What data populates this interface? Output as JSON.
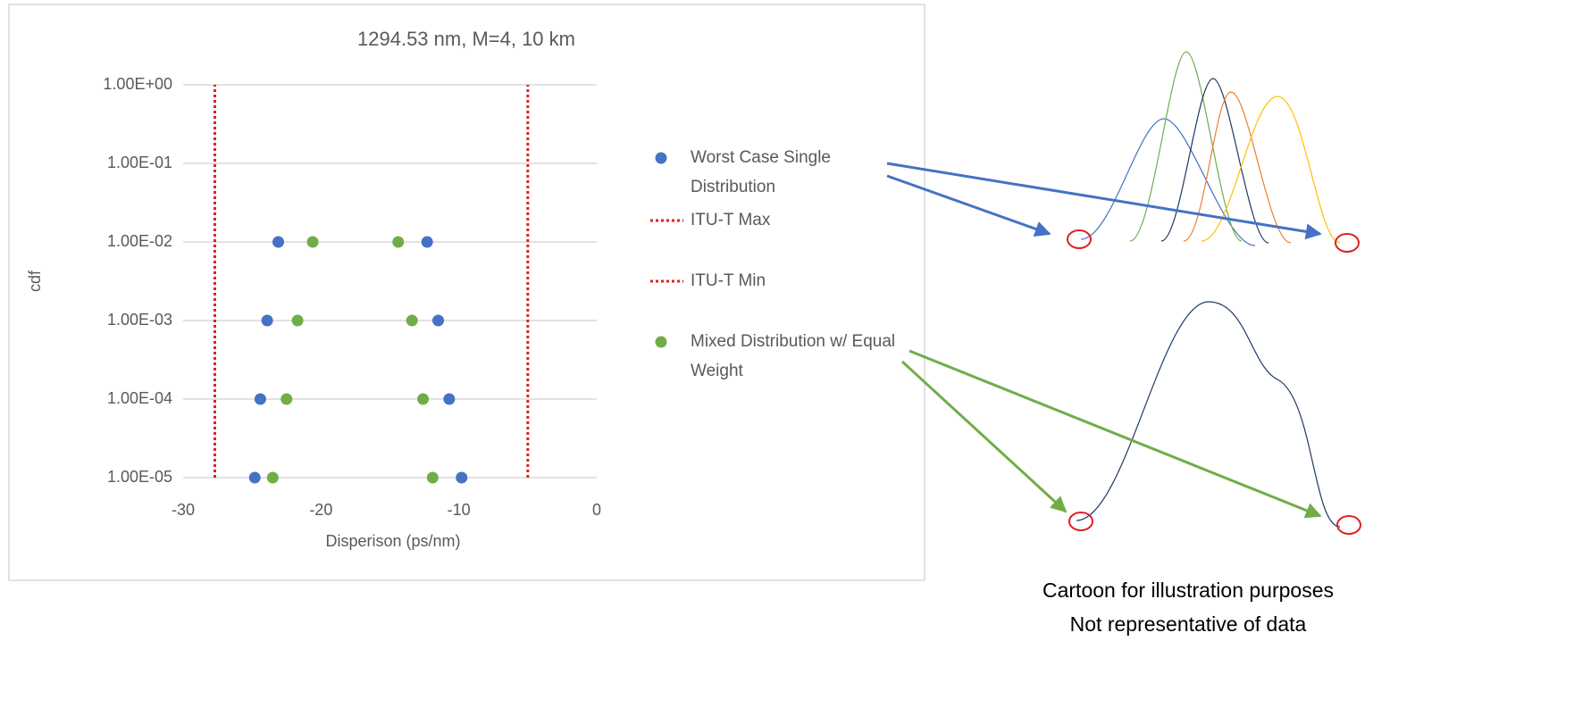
{
  "chart_data": {
    "type": "scatter",
    "title": "1294.53 nm, M=4, 10 km",
    "x_label": "Disperison (ps/nm)",
    "y_label": "cdf",
    "xlim": [
      -30,
      0
    ],
    "xticks": [
      -30,
      -20,
      -10,
      0
    ],
    "ylim": [
      1e-05,
      1
    ],
    "log_y": true,
    "grid": true,
    "yticks": [
      {
        "value": 1,
        "label": "1.00E+00"
      },
      {
        "value": 0.1,
        "label": "1.00E-01"
      },
      {
        "value": 0.01,
        "label": "1.00E-02"
      },
      {
        "value": 0.001,
        "label": "1.00E-03"
      },
      {
        "value": 0.0001,
        "label": "1.00E-04"
      },
      {
        "value": 1e-05,
        "label": "1.00E-05"
      }
    ],
    "series": [
      {
        "name": "Worst Case Single Distribution",
        "color": "#4472c4",
        "style": "marker",
        "x": [
          -23.1,
          -12.3,
          -23.9,
          -11.5,
          -24.4,
          -10.7,
          -24.8,
          -9.8
        ],
        "y": [
          0.01,
          0.01,
          0.001,
          0.001,
          0.0001,
          0.0001,
          1e-05,
          1e-05
        ]
      },
      {
        "name": "ITU-T Max",
        "color": "#e02020",
        "style": "dotted",
        "x": [
          -27.7,
          -27.7
        ],
        "y": [
          1e-05,
          1
        ]
      },
      {
        "name": "ITU-T Min",
        "color": "#e02020",
        "style": "dotted",
        "x": [
          -5.0,
          -5.0
        ],
        "y": [
          1e-05,
          1
        ]
      },
      {
        "name": "Mixed Distribution w/ Equal Weight",
        "color": "#70ad47",
        "style": "marker",
        "x": [
          -20.6,
          -14.4,
          -21.7,
          -13.4,
          -22.5,
          -12.6,
          -23.5,
          -11.9
        ],
        "y": [
          0.01,
          0.01,
          0.001,
          0.001,
          0.0001,
          0.0001,
          1e-05,
          1e-05
        ]
      }
    ]
  },
  "cartoon": {
    "caption": [
      "Cartoon for illustration purposes",
      "Not representative of data"
    ]
  }
}
